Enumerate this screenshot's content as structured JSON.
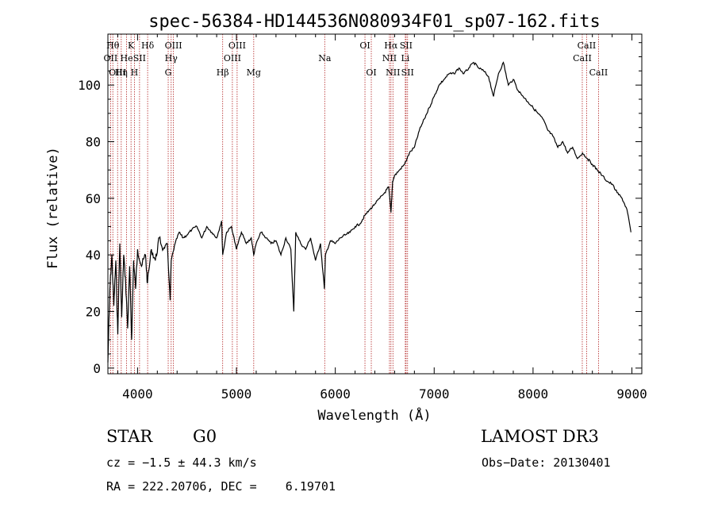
{
  "chart_data": {
    "type": "line",
    "title": "spec-56384-HD144536N080934F01_sp07-162.fits",
    "xlabel": "Wavelength (Å)",
    "ylabel": "Flux (relative)",
    "xlim": [
      3700,
      9100
    ],
    "ylim": [
      -2,
      118
    ],
    "xticks": [
      4000,
      5000,
      6000,
      7000,
      8000,
      9000
    ],
    "yticks": [
      0,
      20,
      40,
      60,
      80,
      100
    ],
    "line_color": "#000000",
    "marker_color": "#b22222",
    "series": [
      {
        "name": "flux",
        "x": [
          3700,
          3720,
          3740,
          3760,
          3780,
          3800,
          3820,
          3840,
          3860,
          3880,
          3900,
          3920,
          3940,
          3960,
          3980,
          4000,
          4040,
          4080,
          4100,
          4140,
          4180,
          4220,
          4260,
          4300,
          4330,
          4340,
          4380,
          4420,
          4460,
          4500,
          4550,
          4600,
          4650,
          4700,
          4750,
          4800,
          4850,
          4861,
          4900,
          4950,
          5000,
          5050,
          5100,
          5150,
          5175,
          5200,
          5250,
          5300,
          5350,
          5400,
          5450,
          5500,
          5550,
          5580,
          5600,
          5650,
          5700,
          5750,
          5800,
          5850,
          5890,
          5900,
          5950,
          6000,
          6050,
          6100,
          6150,
          6200,
          6250,
          6300,
          6350,
          6400,
          6450,
          6500,
          6540,
          6563,
          6580,
          6600,
          6650,
          6700,
          6750,
          6800,
          6850,
          6900,
          6950,
          7000,
          7050,
          7100,
          7150,
          7200,
          7250,
          7300,
          7350,
          7400,
          7450,
          7500,
          7550,
          7600,
          7650,
          7700,
          7750,
          7800,
          7850,
          7900,
          7950,
          8000,
          8050,
          8100,
          8150,
          8200,
          8250,
          8300,
          8350,
          8400,
          8450,
          8500,
          8550,
          8600,
          8650,
          8700,
          8750,
          8800,
          8850,
          8900,
          8950,
          8990
        ],
        "values": [
          2,
          28,
          40,
          22,
          38,
          12,
          44,
          18,
          40,
          30,
          14,
          36,
          10,
          38,
          28,
          42,
          36,
          40,
          30,
          42,
          38,
          46,
          42,
          44,
          24,
          38,
          44,
          48,
          46,
          47,
          49,
          50,
          46,
          50,
          48,
          46,
          52,
          40,
          48,
          50,
          42,
          48,
          44,
          46,
          40,
          44,
          48,
          46,
          44,
          45,
          40,
          46,
          42,
          20,
          48,
          44,
          42,
          46,
          38,
          44,
          28,
          40,
          45,
          44,
          46,
          47,
          48,
          50,
          51,
          54,
          56,
          58,
          60,
          62,
          64,
          55,
          66,
          68,
          70,
          72,
          76,
          78,
          84,
          88,
          92,
          96,
          100,
          102,
          104,
          104,
          106,
          104,
          106,
          108,
          106,
          105,
          103,
          96,
          104,
          108,
          100,
          102,
          98,
          96,
          94,
          92,
          90,
          88,
          84,
          82,
          78,
          80,
          76,
          78,
          74,
          76,
          74,
          72,
          70,
          68,
          66,
          65,
          62,
          60,
          56,
          48
        ]
      }
    ],
    "line_markers": [
      {
        "x": 3727,
        "label": "OII",
        "row": 1
      },
      {
        "x": 3750,
        "label": "Hθ",
        "row": 0
      },
      {
        "x": 3798,
        "label": "OIII",
        "row": 2
      },
      {
        "x": 3835,
        "label": "Hη",
        "row": 2
      },
      {
        "x": 3889,
        "label": "He",
        "row": 1
      },
      {
        "x": 3934,
        "label": "K",
        "row": 0
      },
      {
        "x": 3968,
        "label": "H",
        "row": 2
      },
      {
        "x": 4020,
        "label": "SII",
        "row": 1
      },
      {
        "x": 4102,
        "label": "Hδ",
        "row": 0
      },
      {
        "x": 4310,
        "label": "G",
        "row": 2
      },
      {
        "x": 4340,
        "label": "Hγ",
        "row": 1
      },
      {
        "x": 4363,
        "label": "OIII",
        "row": 0
      },
      {
        "x": 4861,
        "label": "Hβ",
        "row": 2
      },
      {
        "x": 4959,
        "label": "OIII",
        "row": 1
      },
      {
        "x": 5007,
        "label": "OIII",
        "row": 0
      },
      {
        "x": 5175,
        "label": "Mg",
        "row": 2
      },
      {
        "x": 5893,
        "label": "Na",
        "row": 1
      },
      {
        "x": 6300,
        "label": "OI",
        "row": 0
      },
      {
        "x": 6364,
        "label": "OI",
        "row": 2
      },
      {
        "x": 6548,
        "label": "NII",
        "row": 1
      },
      {
        "x": 6563,
        "label": "Hα",
        "row": 0
      },
      {
        "x": 6583,
        "label": "NII",
        "row": 2
      },
      {
        "x": 6708,
        "label": "Li",
        "row": 1
      },
      {
        "x": 6716,
        "label": "SII",
        "row": 0
      },
      {
        "x": 6731,
        "label": "SII",
        "row": 2
      },
      {
        "x": 8498,
        "label": "CaII",
        "row": 1
      },
      {
        "x": 8542,
        "label": "CaII",
        "row": 0
      },
      {
        "x": 8662,
        "label": "CaII",
        "row": 2
      }
    ]
  },
  "info": {
    "object_class": "STAR",
    "subclass": "G0",
    "survey": "LAMOST DR3",
    "redshift": "cz = −1.5 ± 44.3 km/s",
    "obs_date": "Obs−Date: 20130401",
    "coords": "RA = 222.20706, DEC =    6.19701"
  }
}
